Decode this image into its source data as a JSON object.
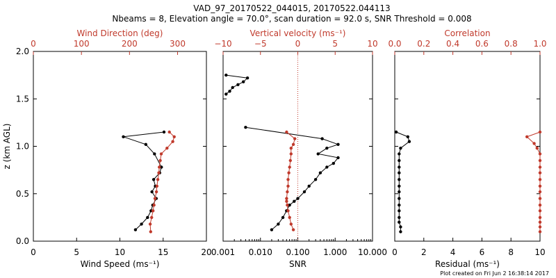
{
  "header": {
    "title": "VAD_97_20170522_044015, 20170522.044113",
    "subtitle": "Nbeams = 8, Elevation angle = 70.0°, scan duration = 92.0 s, SNR Threshold = 0.008"
  },
  "footer": {
    "credit": "Plot created on Fri Jun  2 16:38:14 2017"
  },
  "colors": {
    "black": "#000000",
    "red": "#c0392b"
  },
  "chart_data": [
    {
      "id": "panel1",
      "type": "line",
      "ylabel": "z (km AGL)",
      "ylim": [
        0,
        2
      ],
      "yticks": [
        "0.0",
        "0.5",
        "1.0",
        "1.5",
        "2.0"
      ],
      "xlabel": "Wind Speed (ms⁻¹)",
      "xlim": [
        0,
        20
      ],
      "xticks": [
        "0",
        "5",
        "10",
        "15",
        "20"
      ],
      "top_xlabel": "Wind Direction (deg)",
      "top_xlim": [
        0,
        360
      ],
      "top_xticks": [
        "0",
        "100",
        "200",
        "300"
      ],
      "series": [
        {
          "color": "black",
          "axis": "bottom",
          "x": [
            11.8,
            12.5,
            13.2,
            13.6,
            13.8,
            14.2,
            13.7,
            14.1,
            13.9,
            14.6,
            14.8,
            14.0,
            13.0,
            10.4,
            15.1
          ],
          "y": [
            0.12,
            0.18,
            0.25,
            0.32,
            0.38,
            0.45,
            0.52,
            0.58,
            0.65,
            0.72,
            0.78,
            0.92,
            1.02,
            1.1,
            1.15
          ]
        },
        {
          "color": "red",
          "axis": "top",
          "x": [
            244,
            243,
            246,
            249,
            251,
            253,
            256,
            257,
            259,
            261,
            262,
            264,
            266,
            278,
            290,
            293,
            283
          ],
          "y": [
            0.1,
            0.18,
            0.25,
            0.32,
            0.38,
            0.45,
            0.52,
            0.58,
            0.65,
            0.72,
            0.78,
            0.85,
            0.92,
            0.98,
            1.05,
            1.1,
            1.15
          ]
        }
      ]
    },
    {
      "id": "panel2",
      "type": "line",
      "xlabel": "SNR",
      "xscale": "log",
      "xlim": [
        0.001,
        10
      ],
      "xticks": [
        "0.001",
        "0.010",
        "0.100",
        "1.000",
        "10.000"
      ],
      "top_xlabel": "Vertical velocity (ms⁻¹)",
      "top_xlim": [
        -10,
        10
      ],
      "top_xticks": [
        "−10",
        "−5",
        "0",
        "5",
        "10"
      ],
      "ylim": [
        0,
        2
      ],
      "reference_line": {
        "top_x": 0,
        "style": "dotted",
        "color": "red"
      },
      "series": [
        {
          "color": "black",
          "axis": "bottom",
          "x": [
            0.02,
            0.03,
            0.04,
            0.05,
            0.06,
            0.08,
            0.1,
            0.15,
            0.2,
            0.3,
            0.4,
            0.6,
            0.9,
            1.2,
            0.35,
            0.6,
            1.2,
            0.45,
            0.004
          ],
          "y": [
            0.12,
            0.18,
            0.25,
            0.32,
            0.38,
            0.42,
            0.45,
            0.52,
            0.58,
            0.65,
            0.72,
            0.78,
            0.82,
            0.88,
            0.92,
            0.98,
            1.02,
            1.08,
            1.2
          ],
          "segments": [
            {
              "x": [
                0.0012,
                0.0015,
                0.0018,
                0.0025,
                0.0035,
                0.0045,
                0.0012
              ],
              "y": [
                1.55,
                1.58,
                1.62,
                1.65,
                1.68,
                1.72,
                1.75
              ]
            }
          ]
        },
        {
          "color": "red",
          "axis": "top",
          "x": [
            -0.6,
            -0.9,
            -1.1,
            -1.3,
            -1.4,
            -1.5,
            -1.5,
            -1.4,
            -1.3,
            -1.3,
            -1.2,
            -1.1,
            -1.0,
            -0.9,
            -0.9,
            -0.6,
            -0.4,
            -1.5
          ],
          "y": [
            0.12,
            0.18,
            0.25,
            0.32,
            0.38,
            0.42,
            0.45,
            0.52,
            0.58,
            0.65,
            0.72,
            0.78,
            0.85,
            0.92,
            0.98,
            1.02,
            1.08,
            1.15
          ]
        }
      ]
    },
    {
      "id": "panel3",
      "type": "line",
      "xlabel": "Residual (ms⁻¹)",
      "xlim": [
        0,
        10
      ],
      "xticks": [
        "0",
        "2",
        "4",
        "6",
        "8",
        "10"
      ],
      "top_xlabel": "Correlation",
      "top_xlim": [
        0,
        1
      ],
      "top_xticks": [
        "0.0",
        "0.2",
        "0.4",
        "0.6",
        "0.8",
        "1.0"
      ],
      "ylim": [
        0,
        2
      ],
      "series": [
        {
          "color": "black",
          "axis": "bottom",
          "x": [
            0.4,
            0.4,
            0.3,
            0.3,
            0.3,
            0.3,
            0.3,
            0.3,
            0.3,
            0.3,
            0.3,
            0.3,
            0.3,
            0.3,
            0.4,
            1.0,
            0.9,
            0.1
          ],
          "y": [
            0.1,
            0.15,
            0.2,
            0.25,
            0.32,
            0.38,
            0.45,
            0.52,
            0.58,
            0.65,
            0.72,
            0.78,
            0.85,
            0.92,
            0.98,
            1.05,
            1.1,
            1.15
          ]
        },
        {
          "color": "red",
          "axis": "top",
          "x": [
            1.0,
            1.0,
            1.0,
            1.0,
            1.0,
            1.0,
            1.0,
            1.0,
            1.0,
            1.0,
            1.0,
            1.0,
            1.0,
            1.0,
            0.98,
            0.96,
            0.91,
            1.0
          ],
          "y": [
            0.1,
            0.15,
            0.2,
            0.25,
            0.32,
            0.38,
            0.45,
            0.52,
            0.58,
            0.65,
            0.72,
            0.78,
            0.85,
            0.92,
            0.98,
            1.03,
            1.1,
            1.15
          ]
        }
      ]
    }
  ]
}
